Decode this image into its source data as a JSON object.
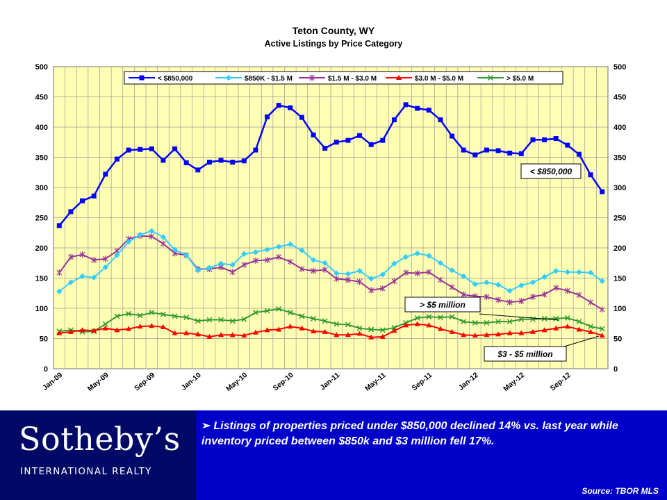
{
  "chart_data": {
    "type": "line",
    "title": "Teton County, WY",
    "subtitle": "Active Listings by Price Category",
    "ylim": [
      0,
      500
    ],
    "yticks": [
      0,
      50,
      100,
      150,
      200,
      250,
      300,
      350,
      400,
      450,
      500
    ],
    "grid": true,
    "legend_position": "top",
    "x_tick_labels": [
      "Jan-09",
      "May-09",
      "Sep-09",
      "Jan-10",
      "May-10",
      "Sep-10",
      "Jan-11",
      "May-11",
      "Sep-11",
      "Jan-12",
      "May-12",
      "Sep-12"
    ],
    "x": [
      "Jan-09",
      "Feb-09",
      "Mar-09",
      "Apr-09",
      "May-09",
      "Jun-09",
      "Jul-09",
      "Aug-09",
      "Sep-09",
      "Oct-09",
      "Nov-09",
      "Dec-09",
      "Jan-10",
      "Feb-10",
      "Mar-10",
      "Apr-10",
      "May-10",
      "Jun-10",
      "Jul-10",
      "Aug-10",
      "Sep-10",
      "Oct-10",
      "Nov-10",
      "Dec-10",
      "Jan-11",
      "Feb-11",
      "Mar-11",
      "Apr-11",
      "May-11",
      "Jun-11",
      "Jul-11",
      "Aug-11",
      "Sep-11",
      "Oct-11",
      "Nov-11",
      "Dec-11",
      "Jan-12",
      "Feb-12",
      "Mar-12",
      "Apr-12",
      "May-12",
      "Jun-12",
      "Jul-12",
      "Aug-12",
      "Sep-12",
      "Oct-12",
      "Nov-12",
      "Dec-12"
    ],
    "series": [
      {
        "name": "< $850,000",
        "color": "#0000ff",
        "marker": "square",
        "values": [
          237,
          260,
          278,
          286,
          322,
          347,
          362,
          363,
          364,
          345,
          364,
          341,
          329,
          342,
          345,
          342,
          344,
          362,
          417,
          436,
          432,
          416,
          387,
          365,
          375,
          378,
          386,
          371,
          378,
          412,
          437,
          431,
          428,
          412,
          385,
          362,
          354,
          362,
          361,
          357,
          356,
          379,
          379,
          381,
          370,
          355,
          321,
          293
        ]
      },
      {
        "name": "$850K - $1.5 M",
        "color": "#33ccff",
        "marker": "diamond",
        "values": [
          128,
          143,
          153,
          151,
          168,
          188,
          210,
          222,
          228,
          218,
          197,
          188,
          163,
          167,
          174,
          172,
          190,
          193,
          197,
          202,
          206,
          196,
          180,
          175,
          158,
          157,
          162,
          149,
          156,
          174,
          185,
          191,
          187,
          175,
          163,
          153,
          140,
          143,
          139,
          129,
          138,
          143,
          152,
          162,
          160,
          160,
          159,
          145
        ]
      },
      {
        "name": "$1.5 M - $3.0 M",
        "color": "#993399",
        "marker": "star",
        "values": [
          159,
          185,
          189,
          180,
          182,
          195,
          215,
          220,
          219,
          207,
          191,
          188,
          165,
          165,
          168,
          160,
          172,
          179,
          180,
          185,
          177,
          165,
          162,
          164,
          149,
          147,
          144,
          130,
          133,
          145,
          159,
          158,
          160,
          147,
          135,
          123,
          120,
          119,
          114,
          110,
          112,
          119,
          123,
          134,
          129,
          122,
          110,
          98
        ]
      },
      {
        "name": "$3.0 M - $5.0 M",
        "color": "#ff0000",
        "marker": "triangle",
        "values": [
          59,
          61,
          64,
          63,
          67,
          64,
          66,
          70,
          71,
          69,
          59,
          59,
          57,
          53,
          56,
          56,
          55,
          60,
          64,
          65,
          70,
          67,
          62,
          61,
          56,
          56,
          58,
          52,
          53,
          63,
          72,
          74,
          72,
          66,
          61,
          56,
          55,
          56,
          57,
          59,
          59,
          61,
          64,
          67,
          70,
          65,
          61,
          55
        ]
      },
      {
        "name": "> $5.0 M",
        "color": "#339933",
        "marker": "x",
        "values": [
          62,
          64,
          61,
          62,
          74,
          87,
          91,
          88,
          93,
          90,
          87,
          85,
          79,
          81,
          81,
          79,
          82,
          93,
          96,
          99,
          93,
          87,
          83,
          79,
          74,
          73,
          67,
          65,
          64,
          68,
          76,
          84,
          86,
          85,
          86,
          78,
          76,
          76,
          78,
          78,
          82,
          82,
          83,
          83,
          84,
          78,
          70,
          66
        ]
      }
    ],
    "annotations": [
      {
        "text": "< $850,000",
        "series": 0
      },
      {
        "text": "> $5 million",
        "series": 4
      },
      {
        "text": "$3 - $5 million",
        "series": 3
      }
    ]
  },
  "footer": {
    "brand": "Sotheby’s",
    "brand_sub": "INTERNATIONAL REALTY",
    "bullet_symbol": "➢",
    "note": "Listings of properties priced under $850,000 declined 14% vs. last year while inventory priced  between $850k and $3 million fell 17%.",
    "source": "Source: TBOR MLS"
  }
}
